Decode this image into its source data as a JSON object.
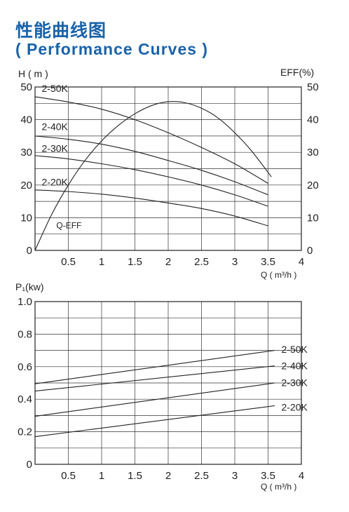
{
  "header": {
    "title_cn": "性能曲线图",
    "title_en": "( Performance Curves )"
  },
  "colors": {
    "title": "#1a62a8",
    "line": "#222222"
  },
  "chart_data": [
    {
      "type": "line",
      "title": "",
      "ylabel_left": "H ( m )",
      "ylabel_right": "EFF(%)",
      "xlabel": "Q ( m³/h )",
      "xlim": [
        0,
        4
      ],
      "ylim": [
        0,
        50
      ],
      "x_ticks": [
        "0.5",
        "1",
        "1.5",
        "2",
        "2.5",
        "3",
        "3.5",
        "4"
      ],
      "y_ticks": [
        "0",
        "10",
        "20",
        "30",
        "40",
        "50"
      ],
      "y_ticks_right": [
        "0",
        "10",
        "20",
        "30",
        "40",
        "50"
      ],
      "grid": true,
      "series": [
        {
          "name": "2-50K",
          "x": [
            0,
            0.5,
            1,
            1.5,
            2,
            2.5,
            3,
            3.5
          ],
          "y": [
            47.0,
            45.4,
            43.2,
            40.0,
            36.0,
            31.5,
            26.5,
            20.5
          ]
        },
        {
          "name": "2-40K",
          "x": [
            0,
            0.5,
            1,
            1.5,
            2,
            2.5,
            3,
            3.5
          ],
          "y": [
            35.0,
            34.0,
            32.5,
            30.3,
            27.5,
            24.5,
            21.0,
            17.0
          ]
        },
        {
          "name": "2-30K",
          "x": [
            0,
            0.5,
            1,
            1.5,
            2,
            2.5,
            3,
            3.5
          ],
          "y": [
            29.0,
            28.0,
            26.5,
            24.7,
            22.5,
            20.0,
            17.0,
            13.5
          ]
        },
        {
          "name": "2-20K",
          "x": [
            0,
            0.5,
            1,
            1.5,
            2,
            2.5,
            3,
            3.5
          ],
          "y": [
            18.5,
            18.0,
            17.2,
            16.0,
            14.5,
            12.8,
            10.5,
            7.5
          ]
        },
        {
          "name": "Q-EFF",
          "x": [
            0,
            0.25,
            0.5,
            0.75,
            1,
            1.25,
            1.5,
            1.75,
            2,
            2.25,
            2.5,
            2.75,
            3,
            3.25,
            3.55
          ],
          "y": [
            0,
            11,
            20,
            27.5,
            33.5,
            38.2,
            41.8,
            44.3,
            45.5,
            45.2,
            43.5,
            40.5,
            36.0,
            30.5,
            22.5
          ]
        }
      ],
      "series_labels": [
        {
          "text": "2-50K",
          "x": 0.1,
          "y": 48.5
        },
        {
          "text": "2-40K",
          "x": 0.1,
          "y": 36.8
        },
        {
          "text": "2-30K",
          "x": 0.1,
          "y": 30.2
        },
        {
          "text": "2-20K",
          "x": 0.1,
          "y": 19.8
        },
        {
          "text": "Q-EFF",
          "x": 0.32,
          "y": 6.8
        }
      ]
    },
    {
      "type": "line",
      "title": "",
      "ylabel": "P₁(kw)",
      "xlabel": "Q ( m³/h )",
      "xlim": [
        0,
        4
      ],
      "ylim": [
        0,
        1.0
      ],
      "x_ticks": [
        "0.5",
        "1",
        "1.5",
        "2",
        "2.5",
        "3",
        "3.5",
        "4"
      ],
      "y_ticks": [
        "0",
        "0.2",
        "0.4",
        "0.6",
        "0.8",
        "1.0"
      ],
      "grid": true,
      "series": [
        {
          "name": "2-50K",
          "x": [
            0,
            3.6
          ],
          "y": [
            0.495,
            0.7
          ]
        },
        {
          "name": "2-40K",
          "x": [
            0,
            3.6
          ],
          "y": [
            0.45,
            0.605
          ]
        },
        {
          "name": "2-30K",
          "x": [
            0,
            3.6
          ],
          "y": [
            0.295,
            0.5
          ]
        },
        {
          "name": "2-20K",
          "x": [
            0,
            3.6
          ],
          "y": [
            0.17,
            0.36
          ]
        }
      ],
      "series_labels": [
        {
          "text": "2-50K",
          "x": 3.7,
          "y": 0.685
        },
        {
          "text": "2-40K",
          "x": 3.7,
          "y": 0.585
        },
        {
          "text": "2-30K",
          "x": 3.7,
          "y": 0.48
        },
        {
          "text": "2-20K",
          "x": 3.7,
          "y": 0.33
        }
      ]
    }
  ]
}
